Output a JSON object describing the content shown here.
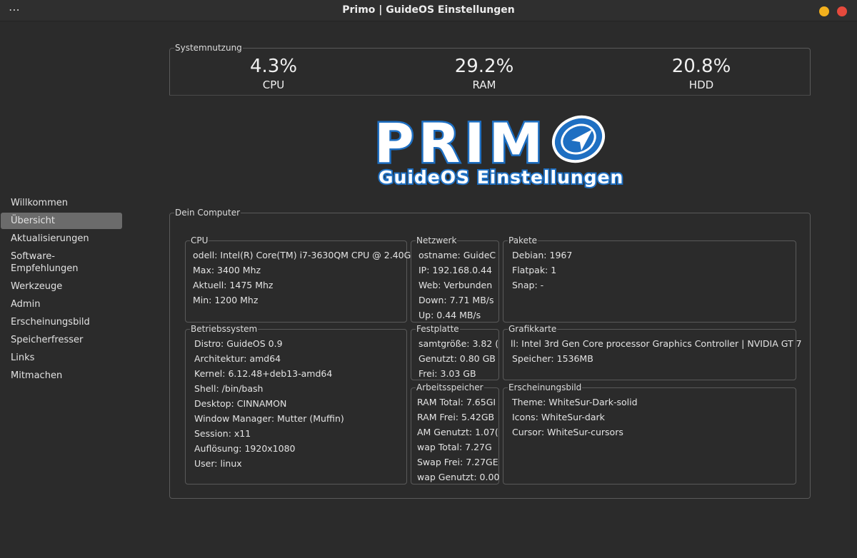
{
  "window": {
    "title": "Primo | GuideOS Einstellungen",
    "menu_glyph": "⋯"
  },
  "sidebar": {
    "items": [
      {
        "label": "Willkommen"
      },
      {
        "label": "Übersicht",
        "active": true
      },
      {
        "label": "Aktualisierungen"
      },
      {
        "label": "Software-Empfehlungen"
      },
      {
        "label": "Werkzeuge"
      },
      {
        "label": "Admin"
      },
      {
        "label": "Erscheinungsbild"
      },
      {
        "label": "Speicherfresser"
      },
      {
        "label": "Links"
      },
      {
        "label": "Mitmachen"
      }
    ]
  },
  "usage": {
    "title": "Systemnutzung",
    "cpu": {
      "value": "4.3%",
      "label": "CPU"
    },
    "ram": {
      "value": "29.2%",
      "label": "RAM"
    },
    "hdd": {
      "value": "20.8%",
      "label": "HDD"
    }
  },
  "logo": {
    "word": "PRIM",
    "subtitle": "GuideOS Einstellungen",
    "colors": {
      "fill": "#ffffff",
      "outline": "#1e6fc2"
    }
  },
  "computer": {
    "title": "Dein Computer",
    "cpu": {
      "title": "CPU",
      "lines": [
        "odell: Intel(R) Core(TM) i7-3630QM CPU @ 2.40G",
        "Max: 3400 Mhz",
        "Aktuell: 1475 Mhz",
        "Min: 1200 Mhz"
      ]
    },
    "network": {
      "title": "Netzwerk",
      "lines": [
        "ostname: GuideC",
        "IP: 192.168.0.44",
        "Web: Verbunden",
        "Down: 7.71 MB/s",
        "Up: 0.44 MB/s"
      ]
    },
    "packages": {
      "title": "Pakete",
      "lines": [
        "Debian: 1967",
        "Flatpak: 1",
        "Snap: -"
      ]
    },
    "os": {
      "title": "Betriebssystem",
      "lines": [
        "Distro: GuideOS 0.9",
        "Architektur: amd64",
        "Kernel: 6.12.48+deb13-amd64",
        "Shell: /bin/bash",
        "Desktop: CINNAMON",
        "Window Manager: Mutter (Muffin)",
        "Session: x11",
        "Auflösung: 1920x1080",
        "User: linux"
      ]
    },
    "disk": {
      "title": "Festplatte",
      "lines": [
        "samtgröße: 3.82 (",
        "Genutzt: 0.80 GB",
        "Frei: 3.03 GB"
      ]
    },
    "gpu": {
      "title": "Grafikkarte",
      "lines": [
        "ll: Intel 3rd Gen Core processor Graphics Controller | NVIDIA GT 7",
        "Speicher: 1536MB"
      ]
    },
    "memory": {
      "title": "Arbeitsspeicher",
      "lines": [
        "RAM Total: 7.65GI",
        "RAM Frei: 5.42GB",
        "AM Genutzt: 1.07(",
        "wap Total: 7.27G",
        "Swap Frei: 7.27GE",
        "wap Genutzt: 0.00"
      ]
    },
    "appearance": {
      "title": "Erscheinungsbild",
      "lines": [
        "Theme: WhiteSur-Dark-solid",
        "Icons: WhiteSur-dark",
        "Cursor: WhiteSur-cursors"
      ]
    }
  }
}
